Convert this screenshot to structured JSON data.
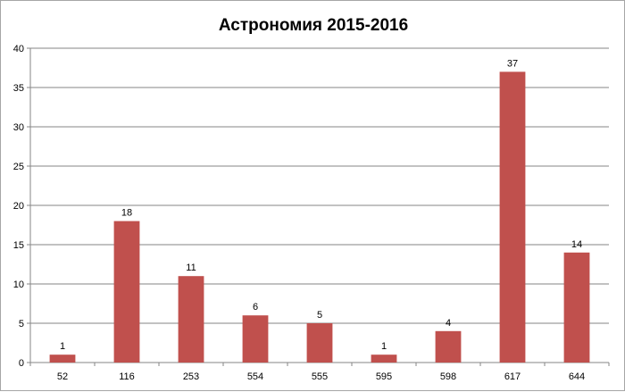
{
  "chart_data": {
    "type": "bar",
    "title": "Астрономия 2015-2016",
    "xlabel": "",
    "ylabel": "",
    "categories": [
      "52",
      "116",
      "253",
      "554",
      "555",
      "595",
      "598",
      "617",
      "644"
    ],
    "values": [
      1,
      18,
      11,
      6,
      5,
      1,
      4,
      37,
      14
    ],
    "data_labels": [
      "1",
      "18",
      "11",
      "6",
      "5",
      "1",
      "4",
      "37",
      "14"
    ],
    "ylim": [
      0,
      40
    ],
    "yticks": [
      0,
      5,
      10,
      15,
      20,
      25,
      30,
      35,
      40
    ],
    "ytick_labels": [
      "0",
      "5",
      "10",
      "15",
      "20",
      "25",
      "30",
      "35",
      "40"
    ],
    "grid": true,
    "legend": "none",
    "bar_color": "#c0504d",
    "grid_color": "#868686"
  }
}
